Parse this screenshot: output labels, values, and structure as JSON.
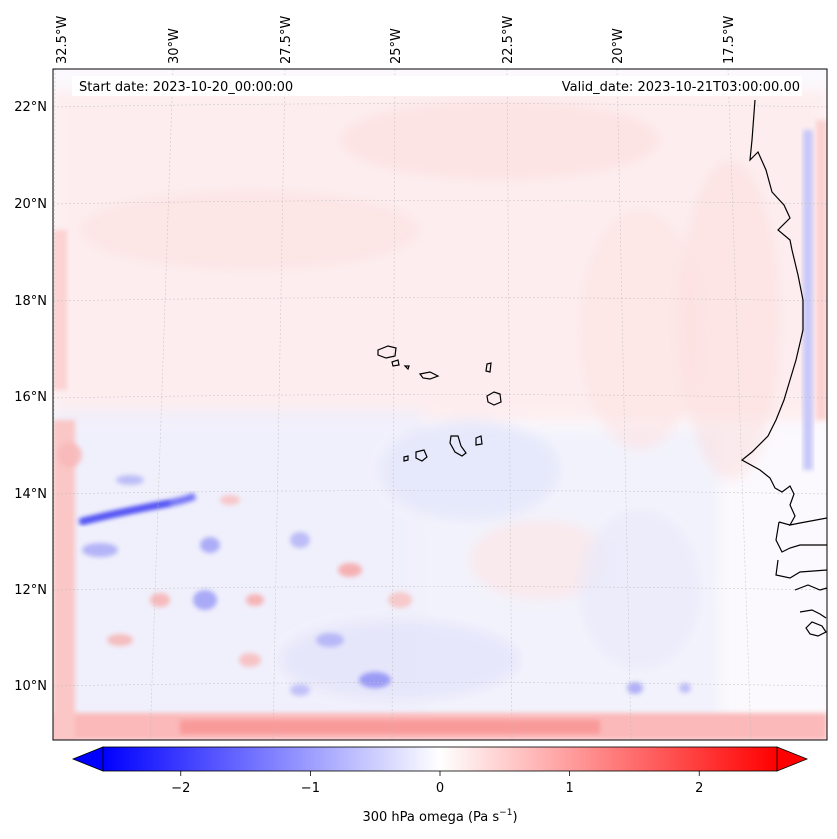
{
  "map": {
    "start_label": "Start date: 2023-10-20_00:00:00",
    "valid_label": "Valid_date: 2023-10-21T03:00:00.00",
    "lon_labels": [
      "32.5°W",
      "30°W",
      "27.5°W",
      "25°W",
      "22.5°W",
      "20°W",
      "17.5°W"
    ],
    "lat_labels": [
      "22°N",
      "20°N",
      "18°N",
      "16°N",
      "14°N",
      "12°N",
      "10°N"
    ],
    "field": "300 hPa omega",
    "gridlines": true
  },
  "colorbar": {
    "label_main": "300 hPa omega (Pa s",
    "label_exp": "−1",
    "label_close": ")",
    "ticks": [
      "−2",
      "−1",
      "0",
      "1",
      "2"
    ],
    "tick_values": [
      -2,
      -1,
      0,
      1,
      2
    ],
    "range": [
      -2.6,
      2.6
    ],
    "extend": "both",
    "colors": {
      "low": "#0000ff",
      "mid": "#ffffff",
      "high": "#ff0000"
    }
  }
}
